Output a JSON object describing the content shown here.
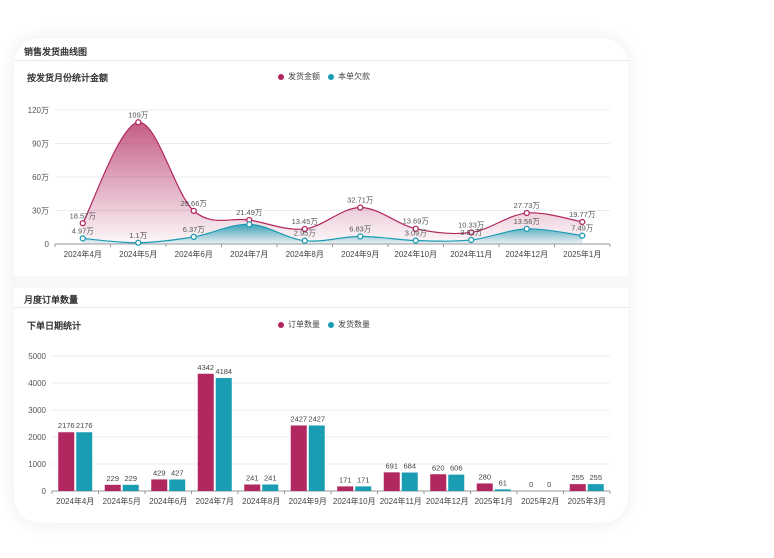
{
  "section1": {
    "title": "销售发货曲线图",
    "subtitle": "按发货月份统计金额"
  },
  "section2": {
    "title": "月度订单数量",
    "subtitle": "下单日期统计"
  },
  "colors": {
    "pink": "#b1275f",
    "teal": "#1a9cb3"
  },
  "chart_data": [
    {
      "type": "area",
      "title": "按发货月份统计金额",
      "categories": [
        "2024年4月",
        "2024年5月",
        "2024年6月",
        "2024年7月",
        "2024年8月",
        "2024年9月",
        "2024年10月",
        "2024年11月",
        "2024年12月",
        "2025年1月"
      ],
      "ylim": [
        0,
        120
      ],
      "yticks": [
        "0",
        "30万",
        "60万",
        "90万",
        "120万"
      ],
      "unit": "万",
      "grid": true,
      "legend": "top-right",
      "series": [
        {
          "name": "发货金额",
          "color": "#b1275f",
          "values": [
            18.57,
            109,
            29.66,
            21.49,
            13.45,
            32.71,
            13.69,
            10.33,
            27.73,
            19.77
          ],
          "labels": [
            "18.57万",
            "109万",
            "29.66万",
            "21.49万",
            "13.45万",
            "32.71万",
            "13.69万",
            "10.33万",
            "27.73万",
            "19.77万"
          ]
        },
        {
          "name": "本单欠款",
          "color": "#1a9cb3",
          "values": [
            4.97,
            1.1,
            6.37,
            17.6,
            2.95,
            6.83,
            3.09,
            3.62,
            13.56,
            7.49
          ],
          "labels": [
            "4.97万",
            "1.1万",
            "6.37万",
            "",
            "2.95万",
            "6.83万",
            "3.09万",
            "3.62万",
            "13.56万",
            "7.49万"
          ]
        }
      ]
    },
    {
      "type": "bar",
      "title": "下单日期统计",
      "categories": [
        "2024年4月",
        "2024年5月",
        "2024年6月",
        "2024年7月",
        "2024年8月",
        "2024年9月",
        "2024年10月",
        "2024年11月",
        "2024年12月",
        "2025年1月",
        "2025年2月",
        "2025年3月"
      ],
      "ylim": [
        0,
        5000
      ],
      "yticks": [
        "0",
        "1000",
        "2000",
        "3000",
        "4000",
        "5000"
      ],
      "grid": true,
      "legend": "top-right",
      "series": [
        {
          "name": "订单数量",
          "color": "#b1275f",
          "values": [
            2176,
            229,
            429,
            4342,
            241,
            2427,
            171,
            691,
            620,
            280,
            0,
            255
          ]
        },
        {
          "name": "发货数量",
          "color": "#1a9cb3",
          "values": [
            2176,
            229,
            427,
            4184,
            241,
            2427,
            171,
            684,
            606,
            61,
            0,
            255
          ]
        }
      ]
    }
  ]
}
